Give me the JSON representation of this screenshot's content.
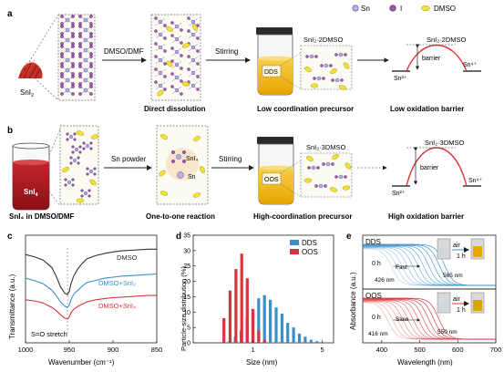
{
  "legend": {
    "sn": "Sn",
    "i": "I",
    "dmso": "DMSO"
  },
  "row_a": {
    "panel_letter": "a",
    "reactant": "SnI",
    "reactant_sub": "2",
    "solvent": "DMSO/DMF",
    "step1_caption": "Direct dissolution",
    "stirring": "Stirring",
    "vial_label": "DDS",
    "complex_label": "SnI₂·2DMSO",
    "precursor_caption": "Low coordination precursor",
    "barrier_label": "barrier",
    "barrier_complex": "SnI₂·2DMSO",
    "left_state": "Sn²⁺",
    "right_state": "Sn⁴⁺",
    "barrier_caption": "Low oxidation barrier"
  },
  "row_b": {
    "panel_letter": "b",
    "reactant": "SnI",
    "reactant_sub": "4",
    "solution_caption": "SnI₄ in DMSO/DMF",
    "additive": "Sn powder",
    "snI4_label": "SnI₄",
    "sn_label": "Sn",
    "step1_caption": "One-to-one reaction",
    "stirring": "Stirring",
    "vial_label": "OOS",
    "complex_label": "SnI₂·3DMSO",
    "precursor_caption": "High-coordination precursor",
    "barrier_label": "barrier",
    "barrier_complex": "SnI₂·3DMSO",
    "left_state": "Sn²⁺",
    "right_state": "Sn⁴⁺",
    "barrier_caption": "High oxidation barrier"
  },
  "panel_c": {
    "panel_letter": "c",
    "chart_data": {
      "type": "line",
      "xlabel": "Wavenumber (cm⁻¹)",
      "ylabel": "Transmittance (a.u.)",
      "xlim": [
        1000,
        850
      ],
      "xticks": [
        1000,
        950,
        900,
        850
      ],
      "annotation": "S=O stretch",
      "series": [
        {
          "name": "DMSO",
          "color": "#333333",
          "x": [
            1000,
            990,
            980,
            970,
            965,
            960,
            955,
            952,
            950,
            948,
            945,
            940,
            935,
            930,
            920,
            910,
            900,
            890,
            880,
            870,
            860,
            850
          ],
          "y": [
            0.82,
            0.8,
            0.77,
            0.7,
            0.62,
            0.52,
            0.46,
            0.45,
            0.48,
            0.55,
            0.62,
            0.69,
            0.74,
            0.78,
            0.81,
            0.83,
            0.845,
            0.855,
            0.86,
            0.865,
            0.87,
            0.87
          ]
        },
        {
          "name": "DMSO+SnI₂",
          "color": "#3b8fc9",
          "x": [
            1000,
            990,
            980,
            970,
            965,
            960,
            955,
            952,
            950,
            948,
            945,
            940,
            935,
            930,
            920,
            910,
            900,
            890,
            880,
            870,
            860,
            850
          ],
          "y": [
            0.6,
            0.58,
            0.55,
            0.49,
            0.44,
            0.38,
            0.34,
            0.33,
            0.35,
            0.4,
            0.45,
            0.49,
            0.53,
            0.56,
            0.58,
            0.6,
            0.61,
            0.62,
            0.625,
            0.63,
            0.635,
            0.64
          ]
        },
        {
          "name": "DMSO+SnI₄",
          "color": "#d9343b",
          "x": [
            1000,
            990,
            980,
            970,
            965,
            960,
            955,
            952,
            950,
            948,
            945,
            940,
            935,
            930,
            920,
            910,
            900,
            890,
            880,
            870,
            860,
            850
          ],
          "y": [
            0.4,
            0.39,
            0.37,
            0.33,
            0.3,
            0.26,
            0.23,
            0.22,
            0.24,
            0.28,
            0.31,
            0.34,
            0.36,
            0.38,
            0.4,
            0.41,
            0.42,
            0.425,
            0.43,
            0.435,
            0.44,
            0.44
          ]
        }
      ]
    }
  },
  "panel_d": {
    "panel_letter": "d",
    "chart_data": {
      "type": "bar",
      "xlabel": "Size (nm)",
      "ylabel": "Particle-size distribution (%)",
      "xscale": "log",
      "xlim": [
        0.25,
        6.5
      ],
      "ylim": [
        0,
        35
      ],
      "yticks": [
        0,
        5,
        10,
        15,
        20,
        25,
        30,
        35
      ],
      "xticks": [
        1,
        5
      ],
      "legend_position": "top-right",
      "series": [
        {
          "name": "DDS",
          "color": "#3b8fc9",
          "x": [
            0.56,
            0.64,
            0.73,
            0.84,
            0.96,
            1.1,
            1.26,
            1.44,
            1.65,
            1.89,
            2.16,
            2.47,
            2.83,
            3.24,
            3.71,
            4.25,
            4.86
          ],
          "values": [
            0.5,
            2,
            4,
            8.5,
            11,
            14.5,
            15.5,
            14,
            11.5,
            9.5,
            6.5,
            5,
            3,
            2,
            1,
            0.5,
            0.2
          ]
        },
        {
          "name": "OOS",
          "color": "#d9343b",
          "x": [
            0.53,
            0.61,
            0.7,
            0.8,
            0.91,
            1.04,
            1.19,
            1.36
          ],
          "values": [
            8,
            17,
            24,
            29,
            21,
            11,
            4,
            1
          ]
        }
      ]
    }
  },
  "panel_e": {
    "panel_letter": "e",
    "chart_data": {
      "type": "line",
      "xlabel": "Wavelength (nm)",
      "ylabel": "Absorbance (a.u.)",
      "xlim": [
        350,
        700
      ],
      "xticks": [
        400,
        500,
        600,
        700
      ],
      "subplots": [
        {
          "label": "DDS",
          "time_start": "0 h",
          "speed": "Fast",
          "edge_start": "426 nm",
          "edge_end": "565 nm",
          "air": "air",
          "time_end": "1 h",
          "color": "#3b8fc9"
        },
        {
          "label": "OOS",
          "time_start": "0 h",
          "speed": "Slow",
          "edge_start": "416 nm",
          "edge_end": "550 nm",
          "air": "air",
          "time_end": "1 h",
          "color": "#d9343b"
        }
      ]
    }
  }
}
